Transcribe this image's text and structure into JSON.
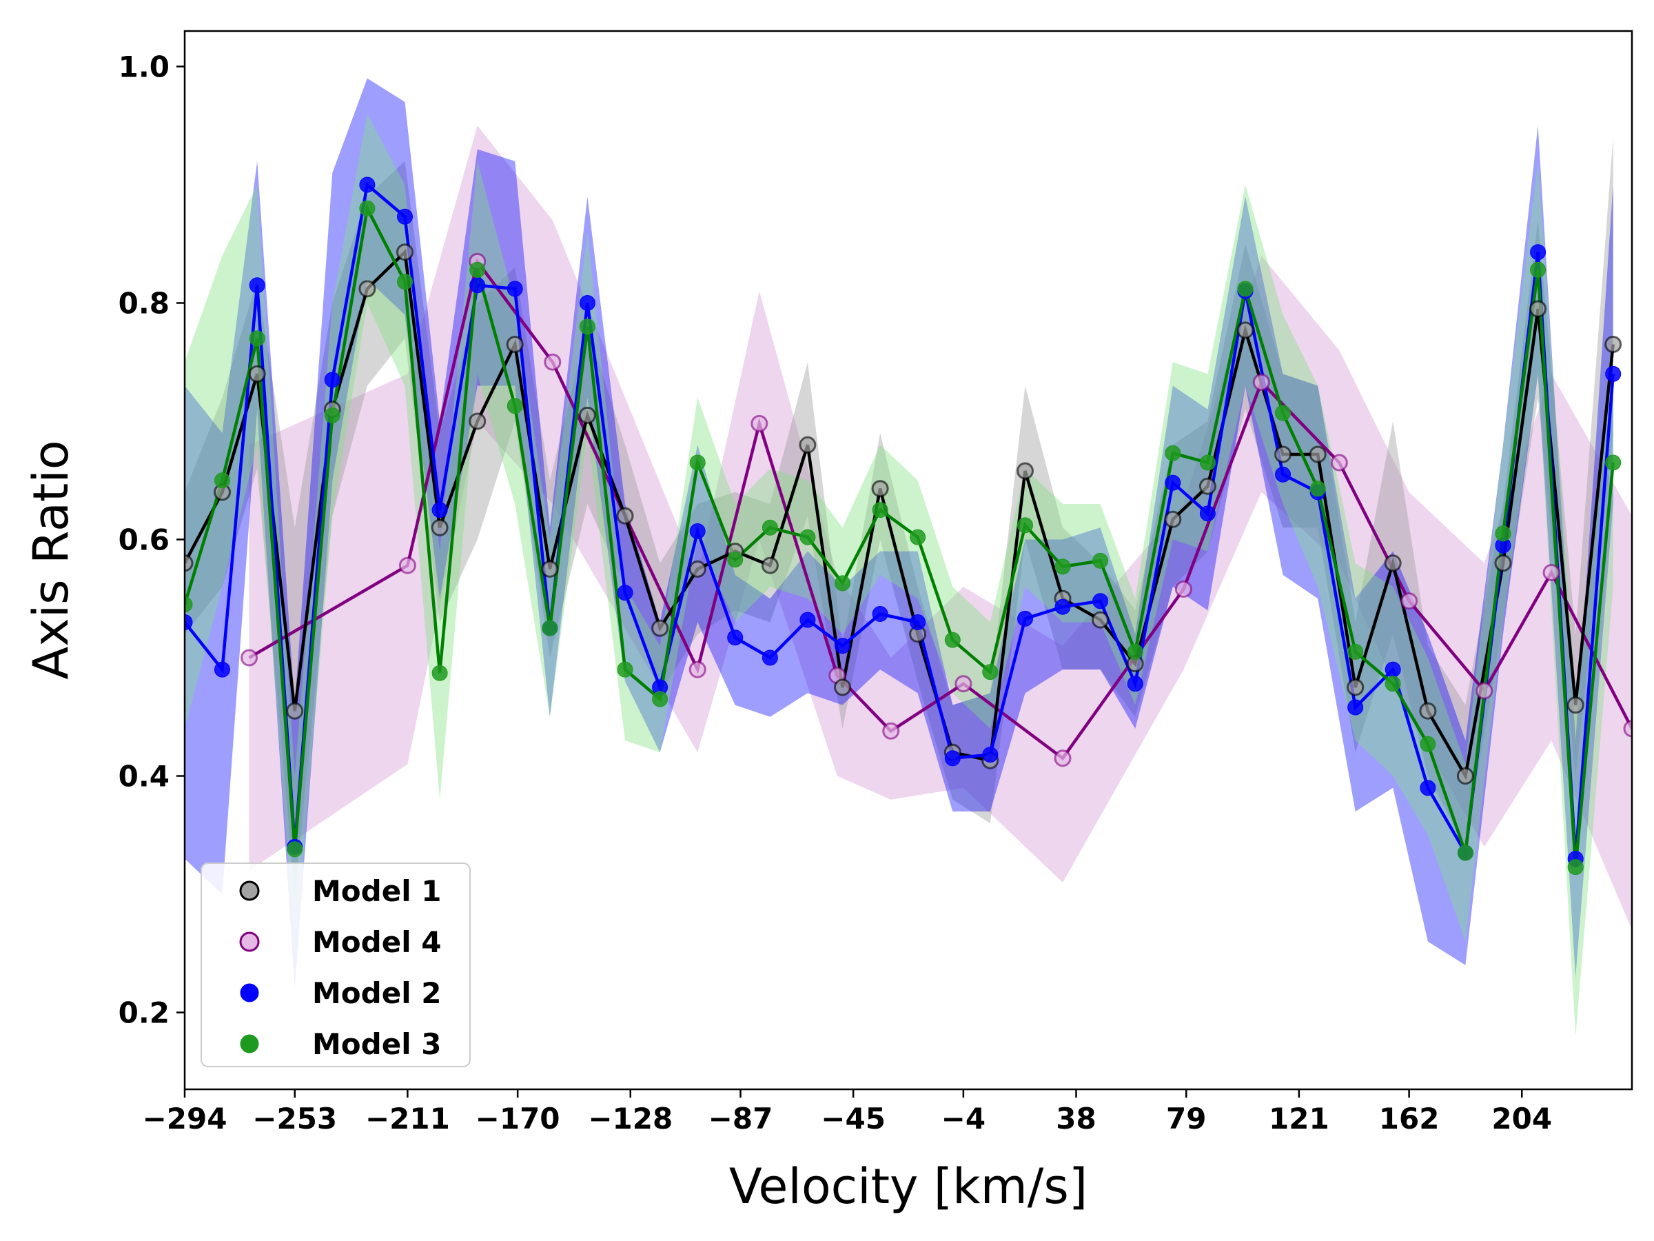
{
  "chart_data": {
    "type": "line",
    "xlabel": "Velocity [km/s]",
    "ylabel": "Axis Ratio",
    "xlim": [
      -294,
      245
    ],
    "ylim": [
      0.135,
      1.03
    ],
    "x_ticks": [
      -294,
      -253,
      -211,
      -170,
      -128,
      -87,
      -45,
      -4,
      38,
      79,
      121,
      162,
      204
    ],
    "x_tick_labels": [
      "−294",
      "−253",
      "−211",
      "−170",
      "−128",
      "−87",
      "−45",
      "−4",
      "38",
      "79",
      "121",
      "162",
      "204"
    ],
    "y_ticks": [
      0.2,
      0.4,
      0.6,
      0.8,
      1.0
    ],
    "y_tick_labels": [
      "0.2",
      "0.4",
      "0.6",
      "0.8",
      "1.0"
    ],
    "grid": false,
    "legend_position": "lower-left",
    "x": [
      -294,
      -280,
      -267,
      -253,
      -239,
      -226,
      -212,
      -199,
      -185,
      -171,
      -158,
      -144,
      -130,
      -117,
      -103,
      -89,
      -76,
      -62,
      -49,
      -35,
      -21,
      -8,
      6,
      19,
      33,
      47,
      60,
      74,
      87,
      101,
      115,
      128,
      142,
      156,
      169,
      183,
      197,
      210,
      224,
      238
    ],
    "series": [
      {
        "name": "Model 1",
        "color": "#000000",
        "band_color": "#999999",
        "marker": "open",
        "marker_fill": "#a3a3a3",
        "x": [
          -294,
          -280,
          -267,
          -253,
          -239,
          -226,
          -212,
          -199,
          -185,
          -171,
          -158,
          -144,
          -130,
          -117,
          -103,
          -89,
          -76,
          -62,
          -49,
          -35,
          -21,
          -8,
          6,
          19,
          33,
          47,
          60,
          74,
          87,
          101,
          115,
          128,
          142,
          156,
          169,
          183,
          197,
          210,
          224,
          238
        ],
        "values": [
          0.58,
          0.64,
          0.74,
          0.455,
          0.71,
          0.812,
          0.843,
          0.61,
          0.7,
          0.765,
          0.575,
          0.705,
          0.62,
          0.525,
          0.575,
          0.59,
          0.578,
          0.68,
          0.475,
          0.643,
          0.52,
          0.42,
          0.413,
          0.658,
          0.55,
          0.532,
          0.495,
          0.617,
          0.645,
          0.777,
          0.672,
          0.672,
          0.475,
          0.58,
          0.455,
          0.4,
          0.58,
          0.795,
          0.46,
          0.765
        ],
        "lower": [
          0.52,
          0.56,
          0.66,
          0.3,
          0.62,
          0.73,
          0.77,
          0.53,
          0.6,
          0.7,
          0.5,
          0.63,
          0.56,
          0.47,
          0.52,
          0.54,
          0.53,
          0.62,
          0.44,
          0.6,
          0.48,
          0.38,
          0.36,
          0.6,
          0.49,
          0.49,
          0.45,
          0.56,
          0.59,
          0.71,
          0.61,
          0.61,
          0.42,
          0.52,
          0.4,
          0.34,
          0.53,
          0.72,
          0.4,
          0.69
        ],
        "upper": [
          0.64,
          0.72,
          0.82,
          0.61,
          0.8,
          0.89,
          0.92,
          0.69,
          0.8,
          0.83,
          0.65,
          0.78,
          0.68,
          0.58,
          0.63,
          0.64,
          0.63,
          0.75,
          0.51,
          0.69,
          0.56,
          0.46,
          0.47,
          0.73,
          0.61,
          0.58,
          0.54,
          0.68,
          0.7,
          0.85,
          0.74,
          0.73,
          0.53,
          0.7,
          0.51,
          0.46,
          0.63,
          0.87,
          0.52,
          0.94
        ]
      },
      {
        "name": "Model 4",
        "color": "#800080",
        "band_color": "#d9a3d9",
        "marker": "open",
        "marker_fill": "#e6b8e6",
        "x": [
          -270,
          -211,
          -185,
          -157,
          -103,
          -80,
          -51,
          -31,
          -4,
          33,
          78,
          107,
          136,
          162,
          190,
          215,
          245
        ],
        "values": [
          0.5,
          0.578,
          0.835,
          0.75,
          0.49,
          0.698,
          0.485,
          0.438,
          0.478,
          0.415,
          0.558,
          0.733,
          0.665,
          0.548,
          0.472,
          0.572,
          0.44
        ],
        "lower": [
          0.32,
          0.41,
          0.7,
          0.63,
          0.42,
          0.6,
          0.4,
          0.38,
          0.39,
          0.31,
          0.49,
          0.64,
          0.58,
          0.45,
          0.34,
          0.43,
          0.27
        ],
        "upper": [
          0.68,
          0.74,
          0.95,
          0.87,
          0.57,
          0.81,
          0.57,
          0.5,
          0.56,
          0.51,
          0.63,
          0.84,
          0.76,
          0.64,
          0.58,
          0.74,
          0.62
        ]
      },
      {
        "name": "Model 2",
        "color": "#0000ff",
        "band_color": "#0000ff",
        "marker": "filled",
        "marker_fill": "#0000ff",
        "x": [
          -294,
          -280,
          -267,
          -253,
          -239,
          -226,
          -212,
          -199,
          -185,
          -171,
          -158,
          -144,
          -130,
          -117,
          -103,
          -89,
          -76,
          -62,
          -49,
          -35,
          -21,
          -8,
          6,
          19,
          33,
          47,
          60,
          74,
          87,
          101,
          115,
          128,
          142,
          156,
          169,
          183,
          197,
          210,
          224,
          238
        ],
        "values": [
          0.53,
          0.49,
          0.815,
          0.34,
          0.735,
          0.9,
          0.873,
          0.625,
          0.815,
          0.812,
          0.525,
          0.8,
          0.555,
          0.475,
          0.607,
          0.517,
          0.5,
          0.532,
          0.51,
          0.537,
          0.53,
          0.415,
          0.418,
          0.533,
          0.543,
          0.548,
          0.478,
          0.648,
          0.622,
          0.81,
          0.655,
          0.64,
          0.458,
          0.49,
          0.39,
          0.335,
          0.595,
          0.843,
          0.33,
          0.74
        ],
        "lower": [
          0.33,
          0.3,
          0.71,
          0.22,
          0.65,
          0.82,
          0.79,
          0.55,
          0.73,
          0.73,
          0.45,
          0.72,
          0.48,
          0.42,
          0.53,
          0.46,
          0.45,
          0.47,
          0.46,
          0.49,
          0.47,
          0.37,
          0.37,
          0.47,
          0.49,
          0.49,
          0.44,
          0.56,
          0.54,
          0.73,
          0.57,
          0.55,
          0.37,
          0.39,
          0.26,
          0.24,
          0.52,
          0.74,
          0.23,
          0.63
        ],
        "upper": [
          0.73,
          0.69,
          0.92,
          0.46,
          0.91,
          0.99,
          0.97,
          0.7,
          0.93,
          0.92,
          0.61,
          0.89,
          0.63,
          0.53,
          0.68,
          0.57,
          0.55,
          0.59,
          0.56,
          0.59,
          0.59,
          0.46,
          0.47,
          0.6,
          0.6,
          0.61,
          0.52,
          0.73,
          0.71,
          0.89,
          0.74,
          0.73,
          0.55,
          0.59,
          0.52,
          0.43,
          0.68,
          0.95,
          0.43,
          0.9
        ]
      },
      {
        "name": "Model 3",
        "color": "#008000",
        "band_color": "#7fe07f",
        "marker": "filled",
        "marker_fill": "#1e9a1e",
        "x": [
          -294,
          -280,
          -267,
          -253,
          -239,
          -226,
          -212,
          -199,
          -185,
          -171,
          -158,
          -144,
          -130,
          -117,
          -103,
          -89,
          -76,
          -62,
          -49,
          -35,
          -21,
          -8,
          6,
          19,
          33,
          47,
          60,
          74,
          87,
          101,
          115,
          128,
          142,
          156,
          169,
          183,
          197,
          210,
          224,
          238
        ],
        "values": [
          0.545,
          0.65,
          0.77,
          0.338,
          0.705,
          0.88,
          0.818,
          0.487,
          0.828,
          0.713,
          0.525,
          0.78,
          0.49,
          0.465,
          0.665,
          0.583,
          0.61,
          0.602,
          0.563,
          0.625,
          0.602,
          0.515,
          0.488,
          0.612,
          0.577,
          0.582,
          0.505,
          0.673,
          0.665,
          0.812,
          0.707,
          0.643,
          0.505,
          0.478,
          0.427,
          0.335,
          0.605,
          0.828,
          0.323,
          0.665
        ],
        "lower": [
          0.44,
          0.56,
          0.68,
          0.25,
          0.62,
          0.8,
          0.73,
          0.38,
          0.74,
          0.63,
          0.45,
          0.69,
          0.43,
          0.42,
          0.6,
          0.53,
          0.56,
          0.55,
          0.52,
          0.57,
          0.55,
          0.47,
          0.44,
          0.56,
          0.53,
          0.53,
          0.46,
          0.6,
          0.59,
          0.73,
          0.63,
          0.56,
          0.43,
          0.4,
          0.35,
          0.26,
          0.53,
          0.74,
          0.18,
          0.56
        ],
        "upper": [
          0.75,
          0.84,
          0.9,
          0.4,
          0.8,
          0.96,
          0.9,
          0.59,
          0.92,
          0.8,
          0.6,
          0.86,
          0.56,
          0.51,
          0.72,
          0.63,
          0.66,
          0.65,
          0.61,
          0.68,
          0.65,
          0.56,
          0.53,
          0.66,
          0.63,
          0.63,
          0.55,
          0.75,
          0.74,
          0.9,
          0.79,
          0.73,
          0.58,
          0.56,
          0.5,
          0.41,
          0.68,
          0.92,
          0.47,
          0.78
        ]
      }
    ]
  }
}
